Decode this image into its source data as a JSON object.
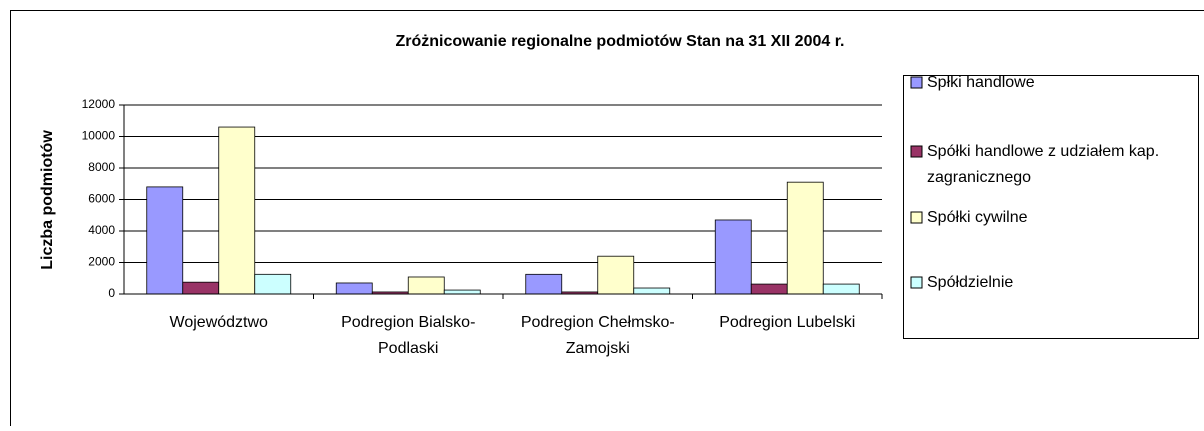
{
  "chart_data": {
    "type": "bar",
    "title": "Zróżnicowanie regionalne podmiotów Stan na 31 XII 2004 r.",
    "y_label": "Liczba podmiotów",
    "categories": [
      "Województwo",
      "Podregion Bialsko-Podlaski",
      "Podregion Chełmsko-Zamojski",
      "Podregion Lubelski"
    ],
    "series": [
      {
        "name": "Spłki handlowe",
        "color": "#9999ff",
        "values": [
          6800,
          700,
          1250,
          4700
        ]
      },
      {
        "name": "Spółki handlowe z udziałem kap. zagranicznego",
        "color": "#993366",
        "values": [
          750,
          130,
          130,
          630
        ]
      },
      {
        "name": "Spółki cywilne",
        "color": "#ffffcc",
        "values": [
          10600,
          1080,
          2400,
          7100
        ]
      },
      {
        "name": "Spółdzielnie",
        "color": "#ccffff",
        "values": [
          1250,
          250,
          380,
          630
        ]
      }
    ],
    "ylim": [
      0,
      12000
    ],
    "yticks": [
      0,
      2000,
      4000,
      6000,
      8000,
      10000,
      12000
    ],
    "grid": true,
    "legend": "right"
  }
}
